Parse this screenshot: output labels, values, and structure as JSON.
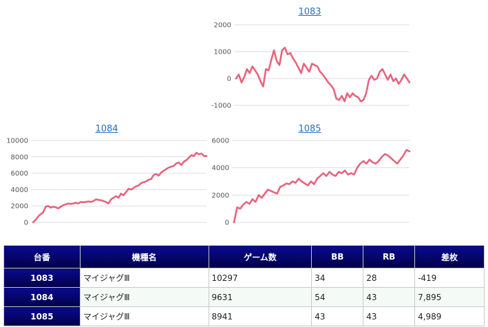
{
  "charts": [
    {
      "title": "1083",
      "ylim": [
        -1000,
        2000
      ],
      "yticks": [
        2000,
        1000,
        0,
        -1000
      ],
      "type": "line",
      "values": [
        0,
        150,
        -150,
        50,
        350,
        200,
        450,
        300,
        150,
        -100,
        -300,
        350,
        300,
        700,
        1050,
        650,
        500,
        1050,
        1150,
        900,
        950,
        750,
        600,
        400,
        200,
        550,
        400,
        250,
        550,
        500,
        450,
        250,
        150,
        0,
        -150,
        -250,
        -400,
        -750,
        -800,
        -650,
        -850,
        -550,
        -700,
        -550,
        -650,
        -700,
        -850,
        -800,
        -550,
        -50,
        100,
        -50,
        0,
        250,
        350,
        150,
        -50,
        150,
        -100,
        0,
        -200,
        -50,
        150,
        0,
        -150
      ]
    },
    {
      "title": "1084",
      "ylim": [
        0,
        10000
      ],
      "yticks": [
        10000,
        8000,
        6000,
        4000,
        2000,
        0
      ],
      "type": "line",
      "values": [
        0,
        300,
        700,
        1000,
        1200,
        1900,
        2000,
        1800,
        1900,
        1850,
        1700,
        1900,
        2100,
        2200,
        2300,
        2250,
        2300,
        2400,
        2300,
        2500,
        2450,
        2500,
        2550,
        2500,
        2600,
        2800,
        2750,
        2700,
        2600,
        2500,
        2300,
        2800,
        3000,
        3200,
        3000,
        3500,
        3300,
        3700,
        4100,
        4000,
        4200,
        4400,
        4500,
        4800,
        4900,
        5000,
        5200,
        5300,
        5800,
        5900,
        5700,
        6100,
        6300,
        6500,
        6700,
        6800,
        6900,
        7200,
        7300,
        7000,
        7400,
        7600,
        7900,
        8200,
        8100,
        8500,
        8300,
        8400,
        8100,
        8100
      ]
    },
    {
      "title": "1085",
      "ylim": [
        0,
        6000
      ],
      "yticks": [
        6000,
        4000,
        2000,
        0
      ],
      "type": "line",
      "values": [
        0,
        1100,
        1000,
        1300,
        1500,
        1350,
        1700,
        1500,
        2000,
        1800,
        2100,
        2400,
        2300,
        2200,
        2100,
        2600,
        2700,
        2850,
        2800,
        3000,
        2900,
        3200,
        3000,
        2850,
        2700,
        3000,
        2800,
        3200,
        3400,
        3600,
        3400,
        3700,
        3500,
        3400,
        3700,
        3600,
        3800,
        3500,
        3600,
        3500,
        4000,
        4300,
        4500,
        4300,
        4600,
        4400,
        4300,
        4500,
        4800,
        5000,
        4900,
        4700,
        4500,
        4300,
        4600,
        4900,
        5300,
        5200
      ]
    }
  ],
  "table": {
    "headers": [
      "台番",
      "機種名",
      "ゲーム数",
      "BB",
      "RB",
      "差枚"
    ],
    "rows": [
      {
        "id": "1083",
        "name": "マイジャグⅢ",
        "games": "10297",
        "bb": "34",
        "rb": "28",
        "diff": "-419",
        "neg": true
      },
      {
        "id": "1084",
        "name": "マイジャグⅢ",
        "games": "9631",
        "bb": "54",
        "rb": "43",
        "diff": "7,895",
        "neg": false
      },
      {
        "id": "1085",
        "name": "マイジャグⅢ",
        "games": "8941",
        "bb": "43",
        "rb": "43",
        "diff": "4,989",
        "neg": false
      }
    ]
  },
  "colors": {
    "line": "#e8637d",
    "header_bg": "#00007a",
    "link": "#2a6ebb",
    "negative": "#e02020"
  }
}
